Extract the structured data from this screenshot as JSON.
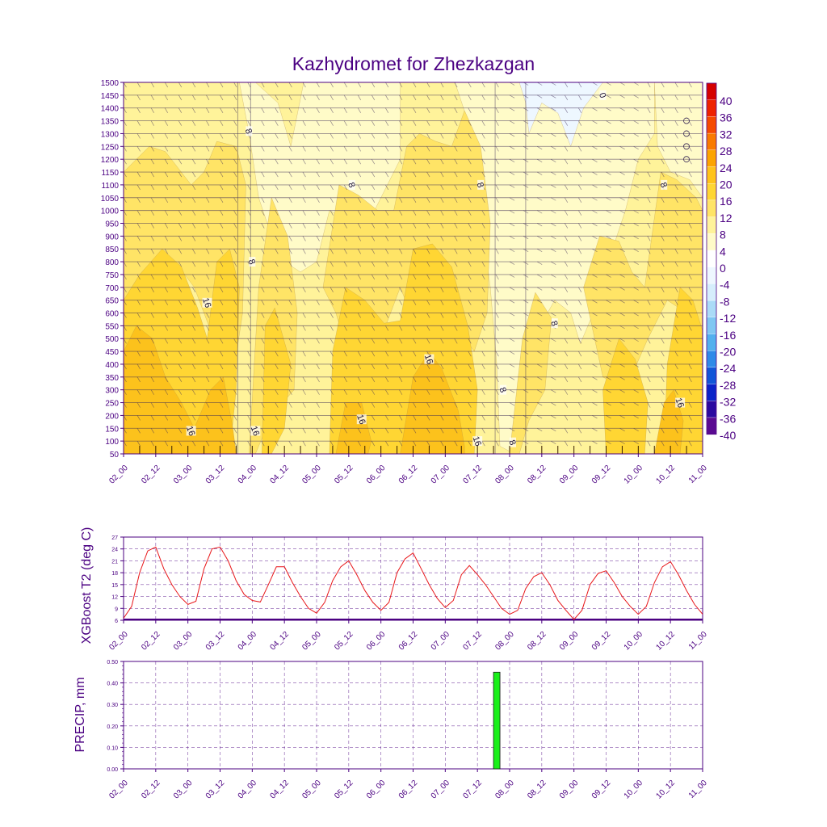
{
  "title": "Kazhydromet for Zhezkazgan",
  "colors": {
    "axis": "#4b0082",
    "t2_line": "#e8171a",
    "precip_bar": "#19f019",
    "grid": "#4b0082"
  },
  "chart_data": [
    {
      "type": "heatmap",
      "name": "cross-section",
      "xticks": [
        "02_00",
        "02_12",
        "03_00",
        "03_12",
        "04_00",
        "04_12",
        "05_00",
        "05_12",
        "06_00",
        "06_12",
        "07_00",
        "07_12",
        "08_00",
        "08_12",
        "09_00",
        "09_12",
        "10_00",
        "10_12",
        "11_00"
      ],
      "yticks": [
        1500,
        1450,
        1400,
        1350,
        1300,
        1250,
        1200,
        1150,
        1100,
        1050,
        1000,
        950,
        900,
        850,
        800,
        750,
        700,
        650,
        600,
        550,
        500,
        450,
        400,
        350,
        300,
        250,
        200,
        150,
        100,
        50
      ],
      "ylim": [
        50,
        1500
      ],
      "colorbar_labels": [
        "40",
        "36",
        "32",
        "28",
        "24",
        "20",
        "16",
        "12",
        "8",
        "4",
        "0",
        "-4",
        "-8",
        "-12",
        "-16",
        "-20",
        "-24",
        "-28",
        "-32",
        "-36",
        "-40"
      ],
      "colorbar_colors": [
        "#d50000",
        "#ee2200",
        "#f54a00",
        "#f97a00",
        "#fca400",
        "#ffc31a",
        "#ffd633",
        "#ffe466",
        "#fff39a",
        "#fffbc8",
        "#ffffff",
        "#eef7ff",
        "#d6eefc",
        "#aadbf7",
        "#7fc7f2",
        "#52b0ee",
        "#2f8ae8",
        "#1155d8",
        "#0a22c8",
        "#2a0aa0",
        "#5a0a92"
      ],
      "contour_labels": [
        {
          "text": "8",
          "t": 3.9,
          "z": 1310
        },
        {
          "text": "8",
          "t": 4.0,
          "z": 800
        },
        {
          "text": "16",
          "t": 2.6,
          "z": 640
        },
        {
          "text": "16",
          "t": 2.1,
          "z": 140
        },
        {
          "text": "16",
          "t": 4.1,
          "z": 140
        },
        {
          "text": "8",
          "t": 7.1,
          "z": 1100
        },
        {
          "text": "16",
          "t": 7.4,
          "z": 185
        },
        {
          "text": "16",
          "t": 9.5,
          "z": 420
        },
        {
          "text": "8",
          "t": 11.1,
          "z": 1100
        },
        {
          "text": "16",
          "t": 11.0,
          "z": 100
        },
        {
          "text": "8",
          "t": 11.8,
          "z": 300
        },
        {
          "text": "8",
          "t": 12.1,
          "z": 95
        },
        {
          "text": "8",
          "t": 13.4,
          "z": 560
        },
        {
          "text": "0",
          "t": 14.9,
          "z": 1450
        },
        {
          "text": "8",
          "t": 16.8,
          "z": 1100
        },
        {
          "text": "16",
          "t": 17.3,
          "z": 250
        }
      ]
    },
    {
      "type": "line",
      "name": "xgboost-t2",
      "ylabel": "XGBoost T2 (deg C)",
      "ylim": [
        6,
        27
      ],
      "yticks": [
        "27",
        "24",
        "21",
        "18",
        "15",
        "12",
        "9",
        "6"
      ],
      "xticks": [
        "02_00",
        "02_12",
        "03_00",
        "03_12",
        "04_00",
        "04_12",
        "05_00",
        "05_12",
        "06_00",
        "06_12",
        "07_00",
        "07_12",
        "08_00",
        "08_12",
        "09_00",
        "09_12",
        "10_00",
        "10_12",
        "11_00"
      ],
      "x": [
        0,
        0.25,
        0.5,
        0.75,
        1,
        1.25,
        1.5,
        1.75,
        2,
        2.25,
        2.5,
        2.75,
        3,
        3.25,
        3.5,
        3.75,
        4,
        4.25,
        4.5,
        4.75,
        5,
        5.25,
        5.5,
        5.75,
        6,
        6.25,
        6.5,
        6.75,
        7,
        7.25,
        7.5,
        7.75,
        8,
        8.25,
        8.5,
        8.75,
        9,
        9.25,
        9.5,
        9.75,
        10,
        10.25,
        10.5,
        10.75,
        11,
        11.25,
        11.5,
        11.75,
        12,
        12.25,
        12.5,
        12.75,
        13,
        13.25,
        13.5,
        13.75,
        14,
        14.25,
        14.5,
        14.75,
        15,
        15.25,
        15.5,
        15.75,
        16,
        16.25,
        16.5,
        16.75,
        17,
        17.25,
        17.5,
        17.75,
        18
      ],
      "values": [
        6.5,
        9.5,
        18,
        23.5,
        24.5,
        19,
        15,
        12,
        10,
        10.8,
        19,
        24,
        24.5,
        21,
        16,
        12.5,
        11,
        10.6,
        15,
        19.5,
        19.5,
        15.5,
        12,
        9,
        7.8,
        10.5,
        16,
        19.5,
        21,
        17.5,
        13.5,
        10.5,
        8.5,
        10.5,
        18,
        21.5,
        23,
        19,
        15,
        11.5,
        9.2,
        11,
        17.5,
        19.8,
        17.5,
        15,
        12,
        9,
        7.5,
        8.5,
        14,
        17,
        18,
        15,
        11,
        8.5,
        6.2,
        8.5,
        15,
        17.8,
        18.5,
        15.5,
        12,
        9.5,
        7.5,
        9.5,
        15.5,
        19.5,
        20.8,
        17.5,
        13.5,
        10,
        7.5
      ]
    },
    {
      "type": "bar",
      "name": "precip",
      "ylabel": "PRECIP, mm",
      "ylim": [
        0,
        0.5
      ],
      "yticks": [
        "0.50",
        "0.40",
        "0.30",
        "0.20",
        "0.10",
        "0.00"
      ],
      "xticks": [
        "02_00",
        "02_12",
        "03_00",
        "03_12",
        "04_00",
        "04_12",
        "05_00",
        "05_12",
        "06_00",
        "06_12",
        "07_00",
        "07_12",
        "08_00",
        "08_12",
        "09_00",
        "09_12",
        "10_00",
        "10_12",
        "11_00"
      ],
      "bars": [
        {
          "x": 11.6,
          "value": 0.45
        }
      ]
    }
  ]
}
